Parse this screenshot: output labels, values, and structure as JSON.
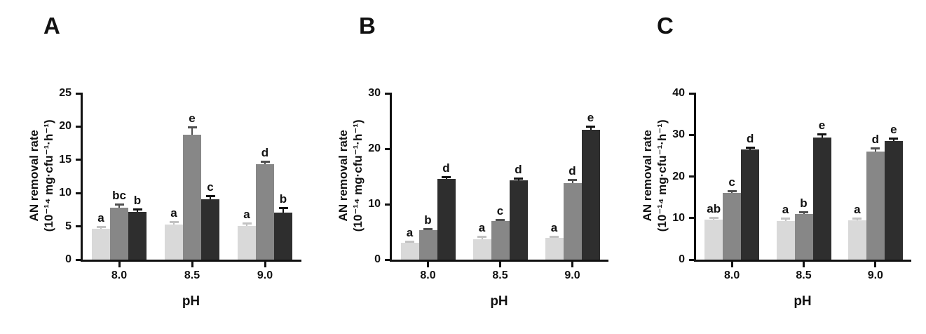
{
  "palette": {
    "background": "#ffffff",
    "axis_color": "#111111",
    "text_color": "#111111",
    "series": [
      {
        "name": "series-light-gray",
        "fill": "#d9d9d9",
        "error": "#c2c2c2"
      },
      {
        "name": "series-medium-gray",
        "fill": "#878787",
        "error": "#4f4f4f"
      },
      {
        "name": "series-dark-gray",
        "fill": "#2e2e2e",
        "error": "#111111"
      }
    ]
  },
  "chart_data": [
    {
      "id": "A",
      "type": "bar",
      "panel_label": "A",
      "xlabel": "pH",
      "ylabel": "AN removal rate (10⁻¹⁴ mg·cfu⁻¹·h⁻¹)",
      "ylabel_lines": [
        "AN removal rate",
        "(10⁻¹⁴ mg·cfu⁻¹·h⁻¹)"
      ],
      "categories": [
        "8.0",
        "8.5",
        "9.0"
      ],
      "ylim": [
        0,
        25
      ],
      "yticks": [
        0,
        5,
        10,
        15,
        20,
        25
      ],
      "grid": false,
      "legend": "none",
      "error_bars": "sd-upper",
      "series": [
        {
          "name": "series-light-gray",
          "values": [
            4.6,
            5.3,
            5.1
          ],
          "errors": [
            0.25,
            0.25,
            0.3
          ],
          "sig_letters": [
            "a",
            "a",
            "a"
          ]
        },
        {
          "name": "series-medium-gray",
          "values": [
            7.8,
            18.8,
            14.3
          ],
          "errors": [
            0.4,
            1.0,
            0.4
          ],
          "sig_letters": [
            "bc",
            "e",
            "d"
          ]
        },
        {
          "name": "series-dark-gray",
          "values": [
            7.2,
            9.1,
            7.1
          ],
          "errors": [
            0.3,
            0.4,
            0.6
          ],
          "sig_letters": [
            "b",
            "c",
            "b"
          ]
        }
      ]
    },
    {
      "id": "B",
      "type": "bar",
      "panel_label": "B",
      "xlabel": "pH",
      "ylabel": "AN removal rate (10⁻¹⁴ mg·cfu⁻¹·h⁻¹)",
      "ylabel_lines": [
        "AN removal rate",
        "(10⁻¹⁴ mg·cfu⁻¹·h⁻¹)"
      ],
      "categories": [
        "8.0",
        "8.5",
        "9.0"
      ],
      "ylim": [
        0,
        30
      ],
      "yticks": [
        0,
        10,
        20,
        30
      ],
      "grid": false,
      "legend": "none",
      "error_bars": "sd-upper",
      "series": [
        {
          "name": "series-light-gray",
          "values": [
            3.0,
            3.7,
            3.9
          ],
          "errors": [
            0.15,
            0.3,
            0.2
          ],
          "sig_letters": [
            "a",
            "a",
            "a"
          ]
        },
        {
          "name": "series-medium-gray",
          "values": [
            5.3,
            7.0,
            13.8
          ],
          "errors": [
            0.2,
            0.15,
            0.45
          ],
          "sig_letters": [
            "b",
            "c",
            "d"
          ]
        },
        {
          "name": "series-dark-gray",
          "values": [
            14.6,
            14.3,
            23.4
          ],
          "errors": [
            0.2,
            0.2,
            0.5
          ],
          "sig_letters": [
            "d",
            "d",
            "e"
          ]
        }
      ]
    },
    {
      "id": "C",
      "type": "bar",
      "panel_label": "C",
      "xlabel": "pH",
      "ylabel": "AN removal rate (10⁻¹⁴ mg·cfu⁻¹·h⁻¹)",
      "ylabel_lines": [
        "AN removal rate",
        "(10⁻¹⁴ mg·cfu⁻¹·h⁻¹)"
      ],
      "categories": [
        "8.0",
        "8.5",
        "9.0"
      ],
      "ylim": [
        0,
        40
      ],
      "yticks": [
        0,
        10,
        20,
        30,
        40
      ],
      "grid": false,
      "legend": "none",
      "error_bars": "sd-upper",
      "series": [
        {
          "name": "series-light-gray",
          "values": [
            9.6,
            9.3,
            9.4
          ],
          "errors": [
            0.3,
            0.45,
            0.4
          ],
          "sig_letters": [
            "ab",
            "a",
            "a"
          ]
        },
        {
          "name": "series-medium-gray",
          "values": [
            16.1,
            11.0,
            26.0
          ],
          "errors": [
            0.3,
            0.3,
            0.7
          ],
          "sig_letters": [
            "c",
            "b",
            "d"
          ]
        },
        {
          "name": "series-dark-gray",
          "values": [
            26.5,
            29.3,
            28.5
          ],
          "errors": [
            0.3,
            0.7,
            0.6
          ],
          "sig_letters": [
            "d",
            "e",
            "e"
          ]
        }
      ]
    }
  ]
}
